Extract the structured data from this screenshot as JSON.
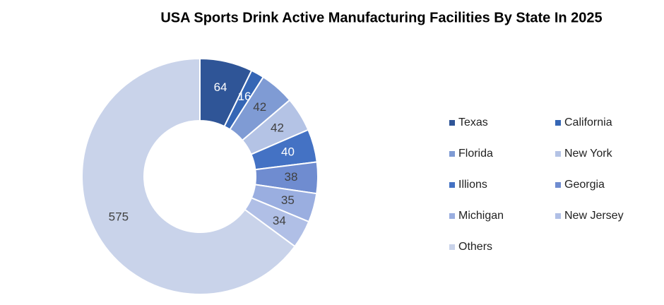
{
  "chart_data": {
    "type": "donut",
    "title": "USA Sports Drink Active Manufacturing Facilities By State In 2025",
    "categories": [
      "Texas",
      "California",
      "Florida",
      "New York",
      "Illions",
      "Georgia",
      "Michigan",
      "New Jersey",
      "Others"
    ],
    "values": [
      64,
      16,
      42,
      42,
      40,
      38,
      35,
      34,
      575
    ],
    "colors": [
      "#2f5597",
      "#3566b5",
      "#7f9bd4",
      "#b4c3e5",
      "#4472c4",
      "#6f8cd0",
      "#9aaee0",
      "#b0bfe6",
      "#c9d3ea"
    ]
  }
}
